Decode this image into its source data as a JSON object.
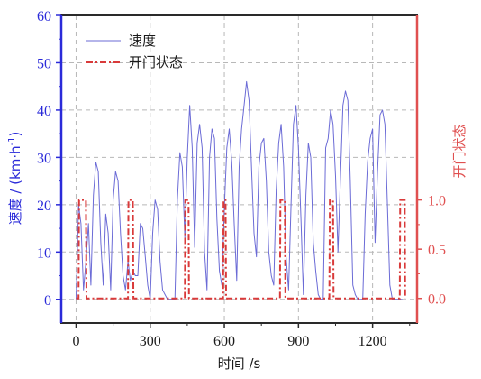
{
  "chart_data": {
    "type": "line",
    "xlabel": "时间 /s",
    "ylabel_left": "速度 / (km·h",
    "ylabel_left_sup": "-1",
    "ylabel_left_close": ")",
    "ylabel_right": "开门状态",
    "xlim": [
      -60,
      1380
    ],
    "ylim_left": [
      -5,
      60
    ],
    "ylim_right": [
      -0.25,
      2.875
    ],
    "xticks": [
      0,
      300,
      600,
      900,
      1200
    ],
    "xtick_labels": [
      "0",
      "300",
      "600",
      "900",
      "1200"
    ],
    "yticks_left": [
      0,
      10,
      20,
      30,
      40,
      50,
      60
    ],
    "ytick_labels_left": [
      "0",
      "10",
      "20",
      "30",
      "40",
      "50",
      "60"
    ],
    "yticks_right": [
      0.0,
      0.5,
      1.0
    ],
    "ytick_labels_right": [
      "0.0",
      "0.5",
      "1.0"
    ],
    "grid": true,
    "legend_position": "top-left",
    "colors": {
      "speed": "#6b6bd6",
      "door": "#d93a3a",
      "left_axis": "#2a2ad9",
      "right_axis": "#e05050",
      "grid": "#b8b8b8"
    },
    "series": [
      {
        "name": "速度",
        "axis": "left",
        "style": "solid",
        "x": [
          0,
          10,
          20,
          30,
          40,
          50,
          60,
          70,
          80,
          90,
          100,
          110,
          120,
          130,
          140,
          150,
          160,
          170,
          180,
          190,
          200,
          210,
          220,
          230,
          240,
          250,
          260,
          270,
          280,
          290,
          300,
          310,
          320,
          330,
          340,
          350,
          360,
          370,
          380,
          390,
          400,
          410,
          420,
          430,
          440,
          450,
          460,
          470,
          480,
          490,
          500,
          510,
          520,
          530,
          540,
          550,
          560,
          570,
          580,
          590,
          600,
          610,
          620,
          630,
          640,
          650,
          660,
          670,
          680,
          690,
          700,
          710,
          720,
          730,
          740,
          750,
          760,
          770,
          780,
          790,
          800,
          810,
          820,
          830,
          840,
          850,
          860,
          870,
          880,
          890,
          900,
          910,
          920,
          930,
          940,
          950,
          960,
          970,
          980,
          990,
          1000,
          1010,
          1020,
          1030,
          1040,
          1050,
          1060,
          1070,
          1080,
          1090,
          1100,
          1110,
          1120,
          1130,
          1140,
          1150,
          1160,
          1170,
          1180,
          1190,
          1200,
          1210,
          1220,
          1230,
          1240,
          1250,
          1260,
          1270,
          1280,
          1290,
          1300,
          1310,
          1320
        ],
        "values": [
          0,
          20,
          16,
          2,
          8,
          16,
          3,
          22,
          29,
          27,
          12,
          3,
          18,
          14,
          2,
          21,
          27,
          25,
          14,
          5,
          2,
          8,
          4,
          6,
          5,
          5,
          16,
          15,
          9,
          3,
          0,
          14,
          21,
          19,
          8,
          2,
          1,
          0,
          0,
          0,
          0,
          21,
          31,
          28,
          13,
          30,
          41,
          32,
          11,
          33,
          37,
          32,
          10,
          2,
          30,
          36,
          34,
          17,
          6,
          3,
          19,
          32,
          36,
          29,
          16,
          4,
          28,
          36,
          41,
          46,
          42,
          28,
          14,
          9,
          28,
          33,
          34,
          25,
          10,
          5,
          3,
          23,
          33,
          37,
          28,
          9,
          2,
          20,
          37,
          41,
          32,
          17,
          1,
          22,
          33,
          30,
          12,
          6,
          1,
          0,
          0,
          32,
          34,
          40,
          37,
          26,
          10,
          26,
          41,
          44,
          42,
          25,
          3,
          1,
          0,
          0,
          0,
          18,
          29,
          34,
          36,
          12,
          27,
          39,
          40,
          37,
          20,
          3,
          0,
          0,
          0,
          0,
          0
        ]
      },
      {
        "name": "开门状态",
        "axis": "right",
        "style": "dash-dot",
        "x": [
          0,
          10,
          12,
          40,
          42,
          210,
          212,
          230,
          232,
          440,
          442,
          455,
          457,
          595,
          597,
          605,
          607,
          825,
          827,
          845,
          847,
          1025,
          1027,
          1040,
          1042,
          1310,
          1312,
          1330,
          1332
        ],
        "values": [
          0,
          0,
          1,
          1,
          0,
          0,
          1,
          1,
          0,
          0,
          1,
          1,
          0,
          0,
          1,
          1,
          0,
          0,
          1,
          1,
          0,
          0,
          1,
          1,
          0,
          0,
          1,
          1,
          0
        ]
      }
    ]
  }
}
